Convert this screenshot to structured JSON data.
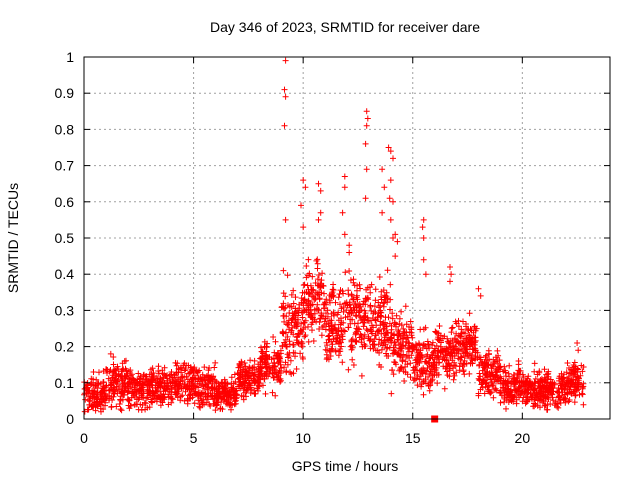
{
  "chart_data": {
    "type": "scatter",
    "title": "Day 346 of 2023, SRMTID for receiver dare",
    "xlabel": "GPS time / hours",
    "ylabel": "SRMTID / TECUs",
    "xlim": [
      0,
      24
    ],
    "ylim": [
      0,
      1
    ],
    "xticks": [
      0,
      5,
      10,
      15,
      20
    ],
    "yticks": [
      0,
      0.1,
      0.2,
      0.3,
      0.4,
      0.5,
      0.6,
      0.7,
      0.8,
      0.9,
      1
    ],
    "xtick_labels": [
      "0",
      "5",
      "10",
      "15",
      "20"
    ],
    "ytick_labels": [
      "0",
      "0.1",
      "0.2",
      "0.3",
      "0.4",
      "0.5",
      "0.6",
      "0.7",
      "0.8",
      "0.9",
      "1"
    ],
    "grid": true,
    "marker": "plus",
    "color": "#ff0000",
    "segments": [
      {
        "x_start": 0.0,
        "x_end": 1.0,
        "baseline": 0.07,
        "spread": 0.05
      },
      {
        "x_start": 1.0,
        "x_end": 2.0,
        "baseline": 0.1,
        "spread": 0.06
      },
      {
        "x_start": 2.0,
        "x_end": 3.0,
        "baseline": 0.08,
        "spread": 0.05
      },
      {
        "x_start": 3.0,
        "x_end": 4.0,
        "baseline": 0.09,
        "spread": 0.05
      },
      {
        "x_start": 4.0,
        "x_end": 5.0,
        "baseline": 0.1,
        "spread": 0.05
      },
      {
        "x_start": 5.0,
        "x_end": 6.0,
        "baseline": 0.09,
        "spread": 0.05
      },
      {
        "x_start": 6.0,
        "x_end": 7.0,
        "baseline": 0.07,
        "spread": 0.04
      },
      {
        "x_start": 7.0,
        "x_end": 8.0,
        "baseline": 0.11,
        "spread": 0.05
      },
      {
        "x_start": 8.0,
        "x_end": 9.0,
        "baseline": 0.15,
        "spread": 0.06
      },
      {
        "x_start": 9.0,
        "x_end": 10.0,
        "baseline": 0.25,
        "spread": 0.1
      },
      {
        "x_start": 10.0,
        "x_end": 11.0,
        "baseline": 0.32,
        "spread": 0.1
      },
      {
        "x_start": 11.0,
        "x_end": 12.0,
        "baseline": 0.27,
        "spread": 0.1
      },
      {
        "x_start": 12.0,
        "x_end": 13.0,
        "baseline": 0.28,
        "spread": 0.11
      },
      {
        "x_start": 13.0,
        "x_end": 14.0,
        "baseline": 0.26,
        "spread": 0.1
      },
      {
        "x_start": 14.0,
        "x_end": 15.0,
        "baseline": 0.2,
        "spread": 0.09
      },
      {
        "x_start": 15.0,
        "x_end": 16.0,
        "baseline": 0.16,
        "spread": 0.07
      },
      {
        "x_start": 16.0,
        "x_end": 17.0,
        "baseline": 0.18,
        "spread": 0.07
      },
      {
        "x_start": 17.0,
        "x_end": 18.0,
        "baseline": 0.2,
        "spread": 0.07
      },
      {
        "x_start": 18.0,
        "x_end": 19.0,
        "baseline": 0.13,
        "spread": 0.06
      },
      {
        "x_start": 19.0,
        "x_end": 20.0,
        "baseline": 0.09,
        "spread": 0.05
      },
      {
        "x_start": 20.0,
        "x_end": 21.0,
        "baseline": 0.08,
        "spread": 0.05
      },
      {
        "x_start": 21.0,
        "x_end": 22.0,
        "baseline": 0.08,
        "spread": 0.05
      },
      {
        "x_start": 22.0,
        "x_end": 22.8,
        "baseline": 0.1,
        "spread": 0.05
      }
    ],
    "outliers": [
      {
        "x": 9.2,
        "y": 0.99
      },
      {
        "x": 9.15,
        "y": 0.91
      },
      {
        "x": 9.2,
        "y": 0.89
      },
      {
        "x": 9.15,
        "y": 0.81
      },
      {
        "x": 9.2,
        "y": 0.55
      },
      {
        "x": 9.1,
        "y": 0.41
      },
      {
        "x": 10.0,
        "y": 0.66
      },
      {
        "x": 10.1,
        "y": 0.64
      },
      {
        "x": 9.9,
        "y": 0.59
      },
      {
        "x": 10.0,
        "y": 0.53
      },
      {
        "x": 10.7,
        "y": 0.65
      },
      {
        "x": 10.8,
        "y": 0.63
      },
      {
        "x": 10.8,
        "y": 0.57
      },
      {
        "x": 10.7,
        "y": 0.55
      },
      {
        "x": 11.9,
        "y": 0.67
      },
      {
        "x": 11.9,
        "y": 0.64
      },
      {
        "x": 11.8,
        "y": 0.57
      },
      {
        "x": 11.9,
        "y": 0.51
      },
      {
        "x": 12.1,
        "y": 0.48
      },
      {
        "x": 12.1,
        "y": 0.46
      },
      {
        "x": 12.9,
        "y": 0.85
      },
      {
        "x": 12.95,
        "y": 0.83
      },
      {
        "x": 12.9,
        "y": 0.81
      },
      {
        "x": 12.85,
        "y": 0.76
      },
      {
        "x": 12.9,
        "y": 0.69
      },
      {
        "x": 12.85,
        "y": 0.61
      },
      {
        "x": 13.6,
        "y": 0.69
      },
      {
        "x": 13.7,
        "y": 0.64
      },
      {
        "x": 13.6,
        "y": 0.57
      },
      {
        "x": 13.9,
        "y": 0.75
      },
      {
        "x": 14.0,
        "y": 0.74
      },
      {
        "x": 14.1,
        "y": 0.72
      },
      {
        "x": 14.0,
        "y": 0.66
      },
      {
        "x": 13.95,
        "y": 0.61
      },
      {
        "x": 14.1,
        "y": 0.6
      },
      {
        "x": 14.0,
        "y": 0.55
      },
      {
        "x": 14.2,
        "y": 0.51
      },
      {
        "x": 14.1,
        "y": 0.5
      },
      {
        "x": 14.3,
        "y": 0.49
      },
      {
        "x": 14.2,
        "y": 0.45
      },
      {
        "x": 15.5,
        "y": 0.55
      },
      {
        "x": 15.45,
        "y": 0.53
      },
      {
        "x": 15.5,
        "y": 0.5
      },
      {
        "x": 15.5,
        "y": 0.44
      },
      {
        "x": 15.6,
        "y": 0.4
      },
      {
        "x": 16.7,
        "y": 0.42
      },
      {
        "x": 16.75,
        "y": 0.4
      },
      {
        "x": 16.7,
        "y": 0.38
      },
      {
        "x": 18.0,
        "y": 0.36
      },
      {
        "x": 18.1,
        "y": 0.34
      },
      {
        "x": 22.5,
        "y": 0.21
      },
      {
        "x": 22.55,
        "y": 0.19
      }
    ],
    "zero_marker": {
      "x": 16.0,
      "y": 0.0
    }
  }
}
